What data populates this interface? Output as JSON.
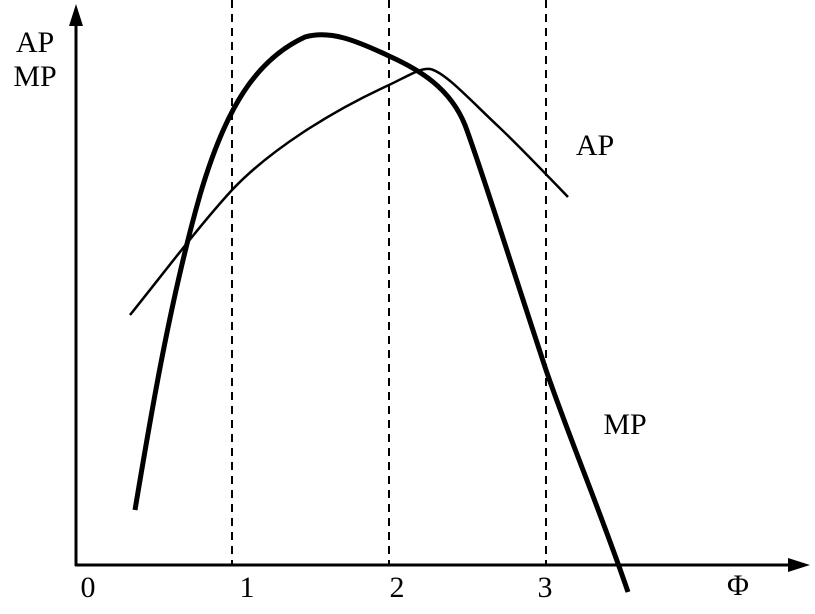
{
  "axis": {
    "y_label": [
      "AP",
      "MP"
    ],
    "x_label": "Φ",
    "ticks": [
      "0",
      "1",
      "2",
      "3"
    ]
  },
  "curves": [
    {
      "label": "AP"
    },
    {
      "label": "MP"
    }
  ]
}
